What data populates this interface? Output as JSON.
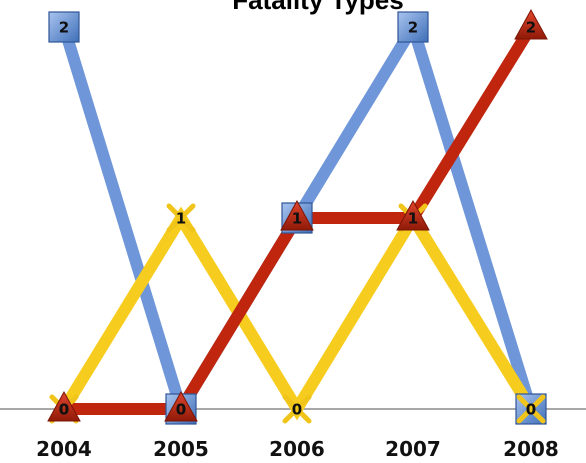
{
  "chart_data": {
    "type": "line",
    "title": "Fatality Types",
    "xlabel": "",
    "ylabel": "",
    "categories": [
      "2004",
      "2005",
      "2006",
      "2007",
      "2008"
    ],
    "ylim": [
      0,
      2
    ],
    "grid": false,
    "legend": "none",
    "series": [
      {
        "values": [
          2,
          0,
          1,
          2,
          0
        ],
        "color": "#6f96d8",
        "marker": "square",
        "marker_color": "#4f81bd"
      },
      {
        "values": [
          0,
          1,
          0,
          1,
          0
        ],
        "color": "#f6cd1f",
        "marker": "x",
        "marker_color": "#f0c419"
      },
      {
        "values": [
          0,
          0,
          1,
          1,
          2
        ],
        "color": "#c0260e",
        "marker": "triangle",
        "marker_color": "#b7230d"
      }
    ]
  }
}
